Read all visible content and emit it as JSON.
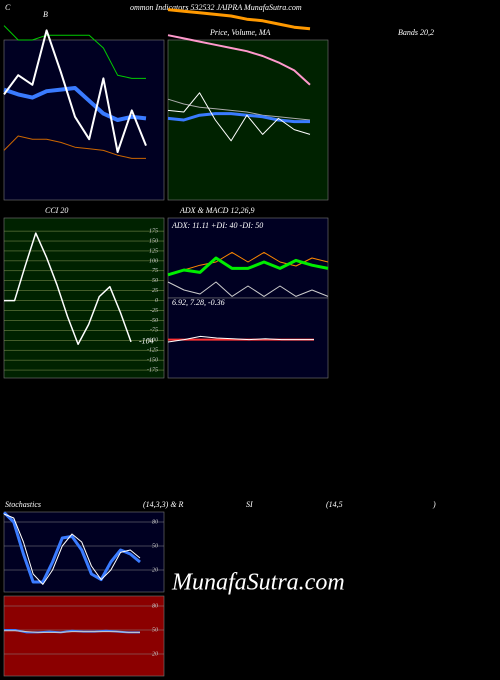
{
  "header": {
    "lead": "C",
    "title": "ommon Indicators 532532 JAIPRA MunafaSutra.com",
    "watermark": "MunafaSutra.com"
  },
  "chart_data": [
    {
      "type": "line",
      "title": "B",
      "background": "#000022",
      "ylim": [
        0,
        100
      ],
      "series": [
        {
          "color": "#00cc00",
          "width": 1,
          "values": [
            109,
            100,
            100,
            103,
            103,
            103,
            103,
            95,
            78,
            76,
            76
          ]
        },
        {
          "color": "#cc6600",
          "width": 1,
          "values": [
            31,
            40,
            38,
            38,
            36,
            33,
            32,
            31,
            28,
            26,
            26
          ]
        },
        {
          "color": "#3a7bff",
          "width": 4,
          "values": [
            69,
            66,
            64,
            68,
            69,
            70,
            62,
            54,
            50,
            52,
            51
          ]
        },
        {
          "color": "#ffffff",
          "width": 2,
          "values": [
            66,
            78,
            72,
            106,
            80,
            52,
            38,
            76,
            30,
            56,
            34
          ]
        }
      ]
    },
    {
      "type": "line",
      "title": "Price, Volume, MA",
      "subtitle": "Bands 20,2",
      "background": "#002200",
      "ylim": [
        0,
        100
      ],
      "series": [
        {
          "color": "#ff9900",
          "width": 3,
          "values": [
            119,
            118,
            117,
            116,
            115,
            113,
            112,
            110,
            108,
            107
          ]
        },
        {
          "color": "#ff99cc",
          "width": 2,
          "values": [
            103,
            101,
            99,
            97,
            95,
            93,
            90,
            86,
            81,
            72
          ]
        },
        {
          "color": "#aaaaaa",
          "width": 1,
          "values": [
            63,
            60,
            58,
            57,
            56,
            55,
            53,
            52,
            51,
            50
          ]
        },
        {
          "color": "#3a7bff",
          "width": 3,
          "values": [
            51,
            50,
            53,
            54,
            54,
            53,
            52,
            50,
            49,
            49
          ]
        },
        {
          "color": "#ffffff",
          "width": 1,
          "values": [
            56,
            55,
            67,
            50,
            37,
            53,
            41,
            51,
            44,
            41
          ]
        }
      ]
    },
    {
      "type": "line",
      "title": "CCI 20",
      "background": "#002200",
      "ylim": [
        -195,
        208
      ],
      "yticks": [
        175,
        150,
        125,
        100,
        75,
        50,
        25,
        0,
        -25,
        -50,
        -75,
        -100,
        -125,
        -150,
        -175
      ],
      "series": [
        {
          "color": "#ffffff",
          "width": 1.5,
          "values": [
            0,
            0,
            87,
            170,
            110,
            40,
            -40,
            -110,
            -60,
            10,
            35,
            -30,
            -104
          ],
          "value_label": "-104"
        }
      ]
    },
    {
      "type": "line",
      "title": "ADX  & MACD 12,26,9",
      "subtitle": "ADX: 11.11 +DI: 40 -DI: 50",
      "background": "#000022",
      "ylim": [
        0,
        100
      ],
      "series": [
        {
          "color": "#ff8800",
          "width": 1,
          "values": [
            29,
            35,
            41,
            45,
            57,
            45,
            57,
            45,
            40,
            50,
            45
          ]
        },
        {
          "color": "#cccccc",
          "width": 1,
          "values": [
            20,
            10,
            5,
            20,
            2,
            15,
            2,
            15,
            2,
            10,
            2
          ]
        },
        {
          "color": "#00ee00",
          "width": 3,
          "values": [
            29,
            35,
            32,
            50,
            37,
            37,
            45,
            37,
            47,
            41,
            37
          ]
        }
      ]
    },
    {
      "type": "line",
      "title": "6.92,  7.28,  -0.36",
      "background": "#000022",
      "ylim": [
        0,
        100
      ],
      "series": [
        {
          "color": "#ff3333",
          "width": 2,
          "values": [
            48,
            48,
            48,
            48,
            48,
            48,
            48,
            48,
            48,
            48
          ]
        },
        {
          "color": "#ffffff",
          "width": 1,
          "values": [
            45,
            48,
            52,
            50,
            49,
            48,
            49,
            48,
            48,
            48
          ]
        }
      ]
    },
    {
      "type": "line",
      "title": "Stochastics",
      "title_parts": [
        "(14,3,3) & R",
        "SI",
        "(14,5",
        ")"
      ],
      "background": "#000022",
      "ylim": [
        -7.5,
        92.5
      ],
      "yticks": [
        80,
        50,
        20
      ],
      "series": [
        {
          "color": "#3a7bff",
          "width": 3,
          "values": [
            92,
            80,
            40,
            5,
            5,
            30,
            60,
            62,
            45,
            15,
            8,
            30,
            45,
            40,
            30
          ]
        },
        {
          "color": "#ffffff",
          "width": 1,
          "values": [
            90,
            85,
            55,
            15,
            2,
            20,
            50,
            65,
            55,
            25,
            8,
            20,
            42,
            45,
            35
          ]
        }
      ]
    },
    {
      "type": "line",
      "background": "#8b0000",
      "ylim": [
        -7.5,
        92.5
      ],
      "yticks": [
        80,
        50,
        20
      ],
      "series": [
        {
          "color": "#3a7bff",
          "width": 2,
          "values": [
            50,
            50,
            47,
            47,
            48,
            47,
            49,
            48,
            48,
            49,
            48,
            47,
            47
          ]
        },
        {
          "color": "#cccccc",
          "width": 1,
          "values": [
            49,
            49,
            48,
            47,
            47,
            47,
            48,
            48,
            48,
            48,
            48,
            47,
            47
          ]
        }
      ]
    }
  ]
}
